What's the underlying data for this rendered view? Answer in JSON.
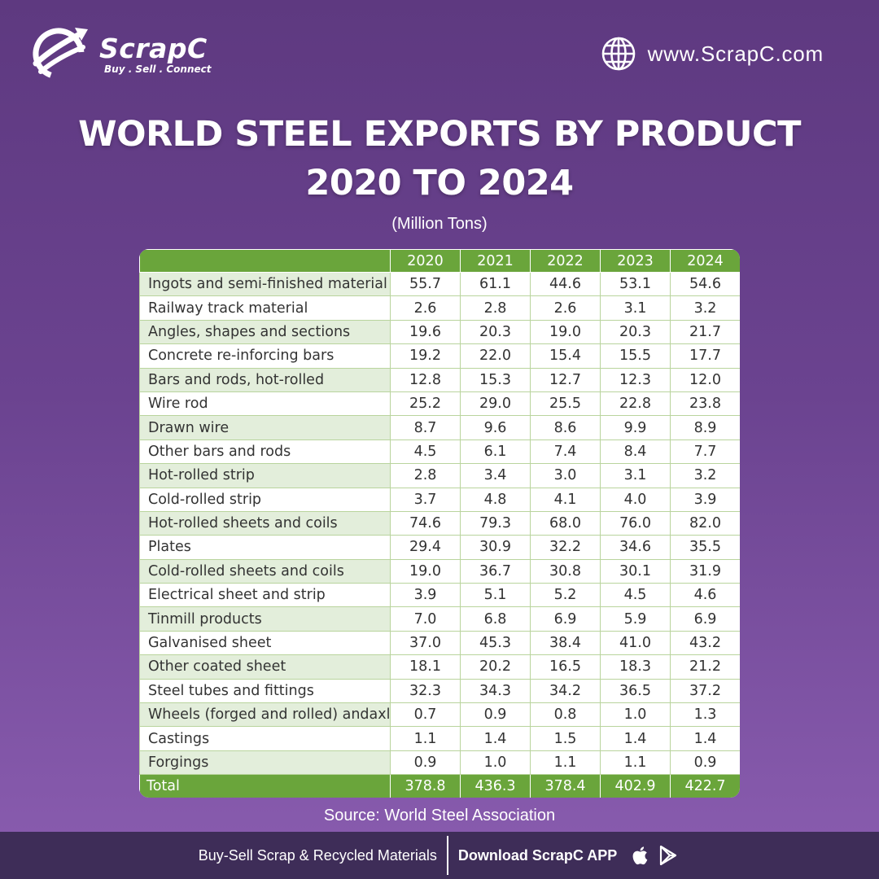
{
  "brand": {
    "name": "ScrapC",
    "tagline": "Buy . Sell . Connect",
    "website": "www.ScrapC.com"
  },
  "title_line1": "WORLD STEEL EXPORTS BY PRODUCT",
  "title_line2": "2020 TO 2024",
  "unit": "(Million Tons)",
  "source": "Source: World Steel Association",
  "footer": {
    "left": "Buy-Sell Scrap & Recycled Materials",
    "right": "Download ScrapC APP"
  },
  "colors": {
    "header_green": "#6aa53b",
    "row_tint": "#e3eedb",
    "bg_purple": "#6b4390",
    "footer_bg": "#3e2d58"
  },
  "chart_data": {
    "type": "table",
    "title": "WORLD STEEL EXPORTS BY PRODUCT 2020 TO 2024",
    "unit": "Million Tons",
    "columns": [
      "2020",
      "2021",
      "2022",
      "2023",
      "2024"
    ],
    "rows": [
      {
        "label": "Ingots and semi-finished material",
        "values": [
          "55.7",
          "61.1",
          "44.6",
          "53.1",
          "54.6"
        ]
      },
      {
        "label": "Railway track material",
        "values": [
          "2.6",
          "2.8",
          "2.6",
          "3.1",
          "3.2"
        ]
      },
      {
        "label": "Angles, shapes and sections",
        "values": [
          "19.6",
          "20.3",
          "19.0",
          "20.3",
          "21.7"
        ]
      },
      {
        "label": "Concrete re-inforcing bars",
        "values": [
          "19.2",
          "22.0",
          "15.4",
          "15.5",
          "17.7"
        ]
      },
      {
        "label": "Bars and rods, hot-rolled",
        "values": [
          "12.8",
          "15.3",
          "12.7",
          "12.3",
          "12.0"
        ]
      },
      {
        "label": "Wire rod",
        "values": [
          "25.2",
          "29.0",
          "25.5",
          "22.8",
          "23.8"
        ]
      },
      {
        "label": "Drawn wire",
        "values": [
          "8.7",
          "9.6",
          "8.6",
          "9.9",
          "8.9"
        ]
      },
      {
        "label": "Other bars and rods",
        "values": [
          "4.5",
          "6.1",
          "7.4",
          "8.4",
          "7.7"
        ]
      },
      {
        "label": "Hot-rolled strip",
        "values": [
          "2.8",
          "3.4",
          "3.0",
          "3.1",
          "3.2"
        ]
      },
      {
        "label": "Cold-rolled strip",
        "values": [
          "3.7",
          "4.8",
          "4.1",
          "4.0",
          "3.9"
        ]
      },
      {
        "label": "Hot-rolled sheets and coils",
        "values": [
          "74.6",
          "79.3",
          "68.0",
          "76.0",
          "82.0"
        ]
      },
      {
        "label": "Plates",
        "values": [
          "29.4",
          "30.9",
          "32.2",
          "34.6",
          "35.5"
        ]
      },
      {
        "label": "Cold-rolled sheets and coils",
        "values": [
          "19.0",
          "36.7",
          "30.8",
          "30.1",
          "31.9"
        ]
      },
      {
        "label": "Electrical sheet and strip",
        "values": [
          "3.9",
          "5.1",
          "5.2",
          "4.5",
          "4.6"
        ]
      },
      {
        "label": "Tinmill products",
        "values": [
          "7.0",
          "6.8",
          "6.9",
          "5.9",
          "6.9"
        ]
      },
      {
        "label": "Galvanised sheet",
        "values": [
          "37.0",
          "45.3",
          "38.4",
          "41.0",
          "43.2"
        ]
      },
      {
        "label": "Other coated sheet",
        "values": [
          "18.1",
          "20.2",
          "16.5",
          "18.3",
          "21.2"
        ]
      },
      {
        "label": "Steel tubes and fittings",
        "values": [
          "32.3",
          "34.3",
          "34.2",
          "36.5",
          "37.2"
        ]
      },
      {
        "label": "Wheels (forged and rolled) andaxles",
        "values": [
          "0.7",
          "0.9",
          "0.8",
          "1.0",
          "1.3"
        ]
      },
      {
        "label": "Castings",
        "values": [
          "1.1",
          "1.4",
          "1.5",
          "1.4",
          "1.4"
        ]
      },
      {
        "label": "Forgings",
        "values": [
          "0.9",
          "1.0",
          "1.1",
          "1.1",
          "0.9"
        ]
      }
    ],
    "total": {
      "label": "Total",
      "values": [
        "378.8",
        "436.3",
        "378.4",
        "402.9",
        "422.7"
      ]
    }
  }
}
